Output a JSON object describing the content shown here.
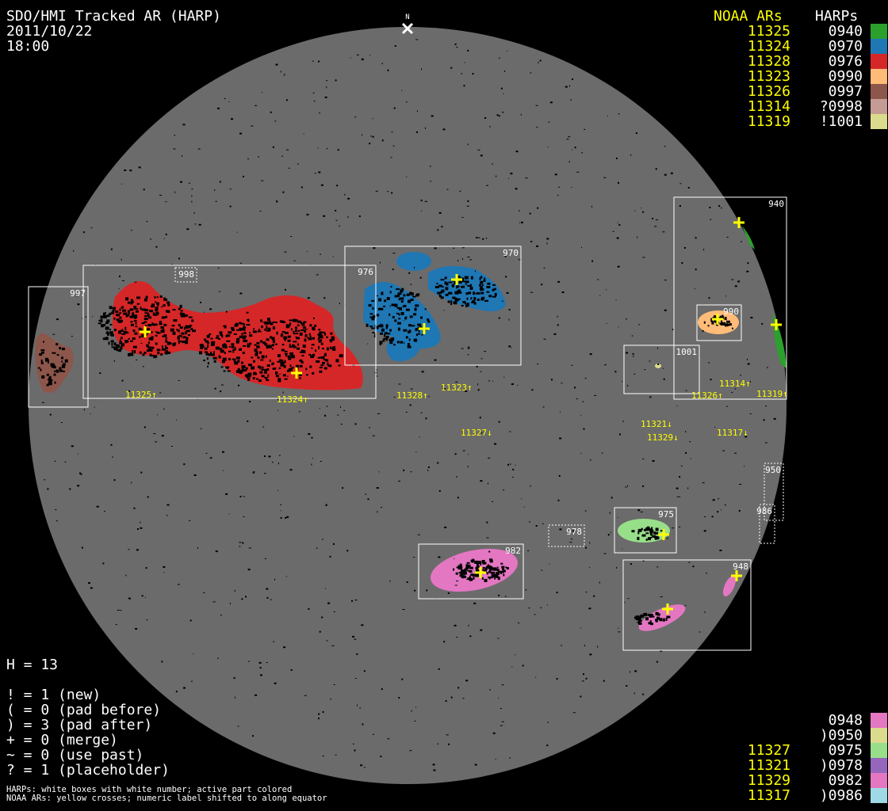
{
  "header": {
    "title": "SDO/HMI Tracked AR (HARP)",
    "date": "2011/10/22",
    "time": "18:00"
  },
  "north_label": "N",
  "legend_top": {
    "noaa_header": "NOAA ARs",
    "harp_header": "HARPs",
    "rows": [
      {
        "noaa": "11325",
        "harp": "0940",
        "color": "#2ca02c"
      },
      {
        "noaa": "11324",
        "harp": "0970",
        "color": "#1f77b4"
      },
      {
        "noaa": "11328",
        "harp": "0976",
        "color": "#d62728"
      },
      {
        "noaa": "11323",
        "harp": "0990",
        "color": "#ffbb78"
      },
      {
        "noaa": "11326",
        "harp": "0997",
        "color": "#8c564b"
      },
      {
        "noaa": "11314",
        "harp": "?0998",
        "color": "#c49c94"
      },
      {
        "noaa": "11319",
        "harp": "!1001",
        "color": "#dbdb8d"
      }
    ]
  },
  "legend_bottom": {
    "rows": [
      {
        "noaa": "",
        "harp": "0948",
        "color": "#e377c2"
      },
      {
        "noaa": "",
        "harp": ")0950",
        "color": "#dbdb8d"
      },
      {
        "noaa": "11327",
        "harp": "0975",
        "color": "#98df8a"
      },
      {
        "noaa": "11321",
        "harp": ")0978",
        "color": "#9467bd"
      },
      {
        "noaa": "11329",
        "harp": "0982",
        "color": "#e377c2"
      },
      {
        "noaa": "11317",
        "harp": ")0986",
        "color": "#9edae5"
      }
    ]
  },
  "stats": {
    "h": "H = 13",
    "lines": [
      "! = 1 (new)",
      "( = 0 (pad before)",
      ") = 3 (pad after)",
      "+ = 0 (merge)",
      "~ = 0 (use past)",
      "? = 1 (placeholder)"
    ]
  },
  "notes": [
    "HARPs: white boxes with white number; active part colored",
    "NOAA ARs: yellow crosses; numeric label shifted to along equator"
  ],
  "harp_boxes": [
    {
      "label": "940"
    },
    {
      "label": "970"
    },
    {
      "label": "976"
    },
    {
      "label": "997"
    },
    {
      "label": "998",
      "dotted": true
    },
    {
      "label": "990"
    },
    {
      "label": "1001"
    },
    {
      "label": "950",
      "dotted": true
    },
    {
      "label": "986",
      "dotted": true
    },
    {
      "label": "975"
    },
    {
      "label": "978",
      "dotted": true
    },
    {
      "label": "982"
    },
    {
      "label": "948"
    }
  ],
  "noaa_labels": [
    "11325↑",
    "11324↑",
    "11328↑",
    "11323↑",
    "11327↓",
    "11321↓",
    "11329↓",
    "11317↓",
    "11326↑",
    "11314↑",
    "11319↑"
  ],
  "colors": {
    "disk": "#6b6b6b",
    "box": "#ffffff",
    "noaa": "#ffff00"
  }
}
